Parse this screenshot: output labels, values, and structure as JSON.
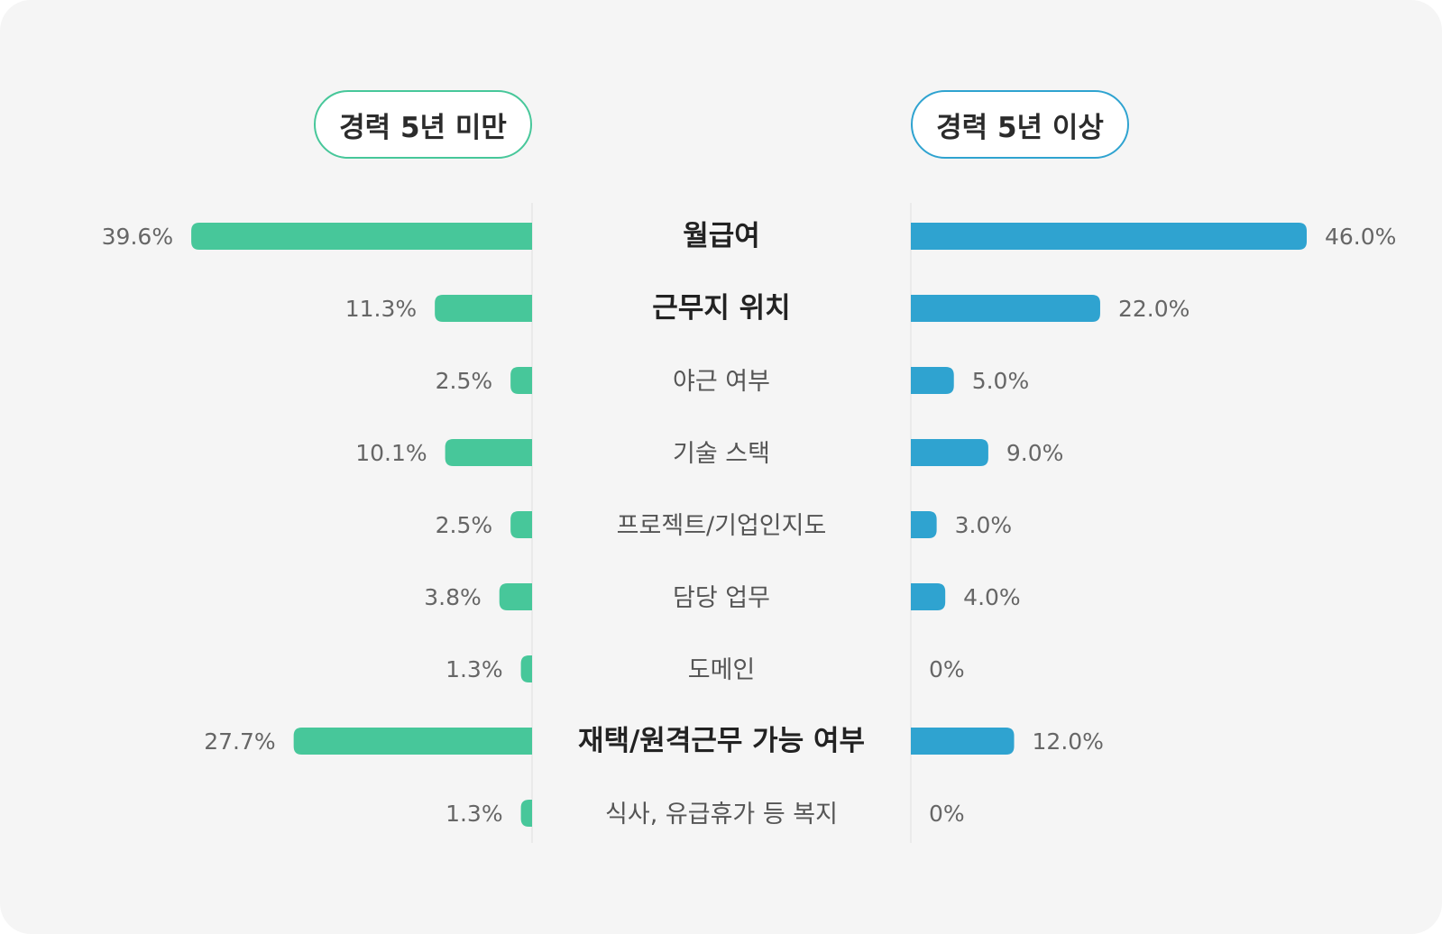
{
  "chart_data": {
    "type": "bar",
    "layout": "butterfly",
    "series": [
      {
        "name": "경력 5년 미만",
        "color": "#47c79a",
        "values": [
          39.6,
          11.3,
          2.5,
          10.1,
          2.5,
          3.8,
          1.3,
          27.7,
          1.3
        ],
        "labels": [
          "39.6%",
          "11.3%",
          "2.5%",
          "10.1%",
          "2.5%",
          "3.8%",
          "1.3%",
          "27.7%",
          "1.3%"
        ]
      },
      {
        "name": "경력 5년 이상",
        "color": "#2fa3d0",
        "values": [
          46.0,
          22.0,
          5.0,
          9.0,
          3.0,
          4.0,
          0,
          12.0,
          0
        ],
        "labels": [
          "46.0%",
          "22.0%",
          "5.0%",
          "9.0%",
          "3.0%",
          "4.0%",
          "0%",
          "12.0%",
          "0%"
        ]
      }
    ],
    "categories": [
      "월급여",
      "근무지 위치",
      "야근 여부",
      "기술 스택",
      "프로젝트/기업인지도",
      "담당 업무",
      "도메인",
      "재택/원격근무 가능 여부",
      "식사, 유급휴가 등 복지"
    ],
    "highlighted_categories": [
      "월급여",
      "근무지 위치",
      "재택/원격근무 가능 여부"
    ],
    "title": "",
    "xlabel": "",
    "ylabel": "",
    "xlim": [
      0,
      46
    ]
  },
  "header": {
    "left_label": "경력 5년 미만",
    "right_label": "경력 5년 이상"
  },
  "colors": {
    "left": "#47c79a",
    "right": "#2fa3d0",
    "background": "#f5f5f5"
  }
}
